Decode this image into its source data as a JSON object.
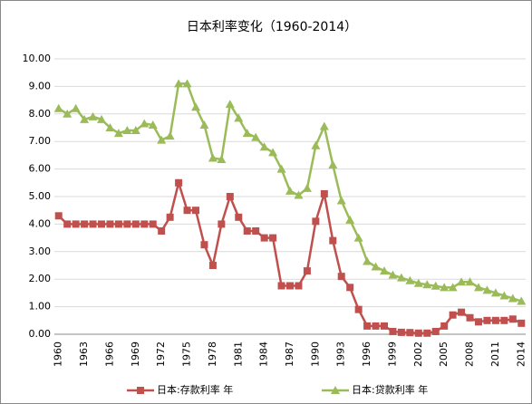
{
  "chart_data": {
    "type": "line",
    "title": "日本利率变化（1960-2014）",
    "categories": [
      "1960",
      null,
      null,
      "1963",
      null,
      null,
      "1966",
      null,
      null,
      "1969",
      null,
      null,
      "1972",
      null,
      null,
      "1975",
      null,
      null,
      "1978",
      null,
      null,
      "1981",
      null,
      null,
      "1984",
      null,
      null,
      "1987",
      null,
      null,
      "1990",
      null,
      null,
      "1993",
      null,
      null,
      "1996",
      null,
      null,
      "1999",
      null,
      null,
      "2002",
      null,
      null,
      "2005",
      null,
      null,
      "2008",
      null,
      null,
      "2011",
      null,
      null,
      "2014"
    ],
    "series": [
      {
        "name": "日本:存款利率 年",
        "color": "#c0504d",
        "marker": "square",
        "values": [
          4.3,
          4.0,
          4.0,
          4.0,
          4.0,
          4.0,
          4.0,
          4.0,
          4.0,
          4.0,
          4.0,
          4.0,
          3.75,
          4.25,
          5.5,
          4.5,
          4.5,
          3.25,
          2.5,
          4.0,
          5.0,
          4.25,
          3.75,
          3.75,
          3.5,
          3.5,
          1.76,
          1.76,
          1.76,
          2.3,
          4.1,
          5.1,
          3.4,
          2.1,
          1.7,
          0.9,
          0.3,
          0.3,
          0.3,
          0.1,
          0.07,
          0.06,
          0.04,
          0.04,
          0.1,
          0.3,
          0.7,
          0.8,
          0.6,
          0.45,
          0.5,
          0.5,
          0.5,
          0.55,
          0.4
        ]
      },
      {
        "name": "日本:贷款利率 年",
        "color": "#9bbb59",
        "marker": "triangle",
        "values": [
          8.2,
          8.0,
          8.2,
          7.8,
          7.9,
          7.8,
          7.5,
          7.3,
          7.4,
          7.4,
          7.65,
          7.6,
          7.05,
          7.2,
          9.1,
          9.1,
          8.25,
          7.6,
          6.4,
          6.35,
          8.35,
          7.85,
          7.3,
          7.15,
          6.8,
          6.6,
          6.0,
          5.2,
          5.05,
          5.3,
          6.85,
          7.55,
          6.15,
          4.85,
          4.15,
          3.5,
          2.65,
          2.45,
          2.3,
          2.15,
          2.05,
          1.95,
          1.85,
          1.8,
          1.75,
          1.7,
          1.7,
          1.9,
          1.9,
          1.7,
          1.6,
          1.5,
          1.4,
          1.3,
          1.2
        ]
      }
    ],
    "ylim": [
      0,
      10
    ],
    "yticks": [
      {
        "value": 0,
        "label": "0.00"
      },
      {
        "value": 1,
        "label": "1.00"
      },
      {
        "value": 2,
        "label": "2.00"
      },
      {
        "value": 3,
        "label": "3.00"
      },
      {
        "value": 4,
        "label": "4.00"
      },
      {
        "value": 5,
        "label": "5.00"
      },
      {
        "value": 6,
        "label": "6.00"
      },
      {
        "value": 7,
        "label": "7.00"
      },
      {
        "value": 8,
        "label": "8.00"
      },
      {
        "value": 9,
        "label": "9.00"
      },
      {
        "value": 10,
        "label": "10.00"
      }
    ],
    "grid": true,
    "legend": "bottom"
  }
}
